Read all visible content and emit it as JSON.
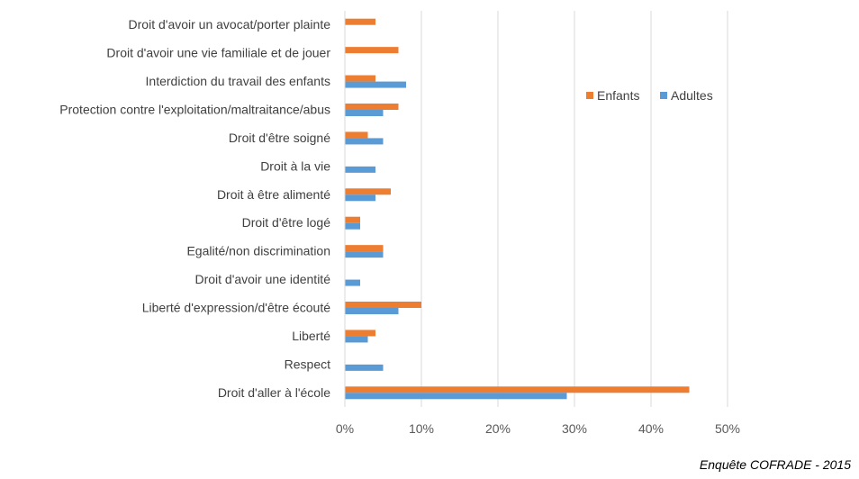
{
  "chart_data": {
    "type": "bar",
    "orientation": "horizontal",
    "categories": [
      "Droit d'avoir un avocat/porter plainte",
      "Droit d'avoir une vie familiale et de jouer",
      "Interdiction du travail des enfants",
      "Protection contre l'exploitation/maltraitance/abus",
      "Droit d'être soigné",
      "Droit à la vie",
      "Droit à être alimenté",
      "Droit d'être logé",
      "Egalité/non discrimination",
      "Droit d'avoir une identité",
      "Liberté d'expression/d'être écouté",
      "Liberté",
      "Respect",
      "Droit d'aller à l'école"
    ],
    "series": [
      {
        "name": "Enfants",
        "color": "#ED7D31",
        "values": [
          4,
          7,
          4,
          7,
          3,
          0,
          6,
          2,
          5,
          0,
          10,
          4,
          0,
          45
        ]
      },
      {
        "name": "Adultes",
        "color": "#5B9BD5",
        "values": [
          0,
          0,
          8,
          5,
          5,
          4,
          4,
          2,
          5,
          2,
          7,
          3,
          5,
          29
        ]
      }
    ],
    "xlim": [
      0,
      50
    ],
    "x_ticks": [
      "0%",
      "10%",
      "20%",
      "30%",
      "40%",
      "50%"
    ],
    "grid": "vertical",
    "legend_position": "right"
  },
  "source_note": "Enquête COFRADE - 2015"
}
